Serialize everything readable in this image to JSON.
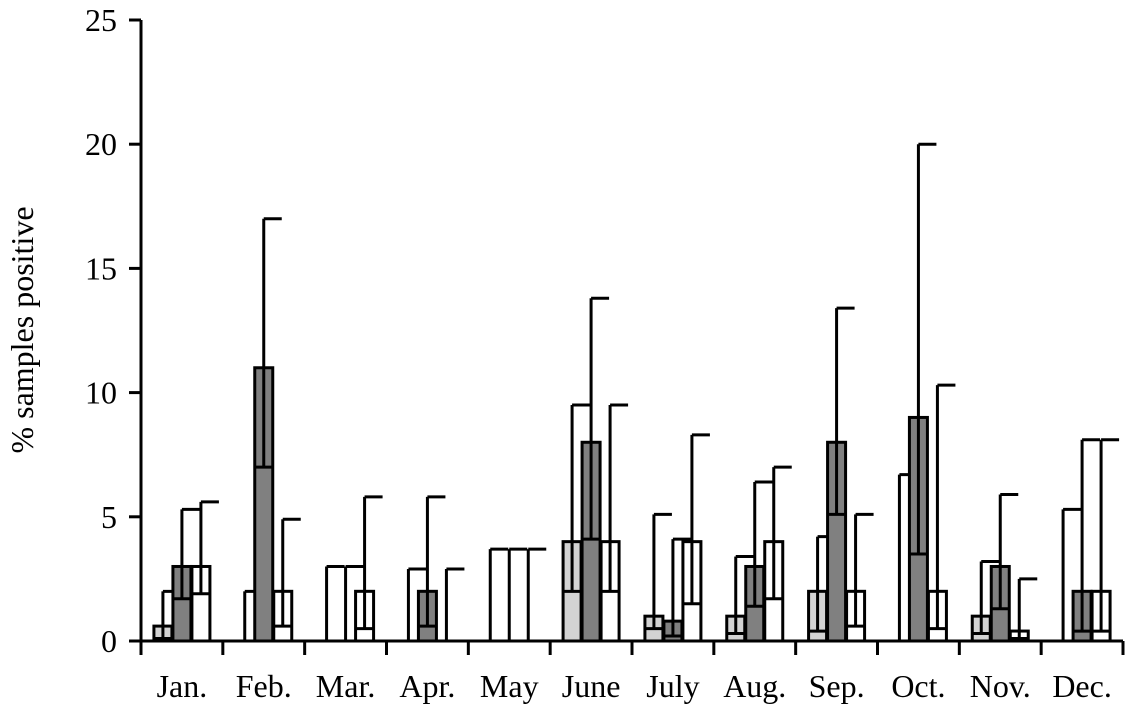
{
  "chart_data": {
    "type": "bar",
    "title": "",
    "xlabel": "",
    "ylabel": "% samples positive",
    "ylim": [
      0,
      25
    ],
    "yticks": [
      0,
      5,
      10,
      15,
      20,
      25
    ],
    "categories": [
      "Jan.",
      "Feb.",
      "Mar.",
      "Apr.",
      "May",
      "June",
      "July",
      "Aug.",
      "Sep.",
      "Oct.",
      "Nov.",
      "Dec."
    ],
    "series": [
      {
        "color": "#d3d3d3",
        "values": [
          0.6,
          0,
          0,
          0,
          0,
          4.0,
          1.0,
          1.0,
          2.0,
          0,
          1.0,
          0
        ],
        "error_low": [
          0.1,
          0,
          0,
          0,
          0,
          2.0,
          0.5,
          0.3,
          0.4,
          0,
          0.3,
          0
        ],
        "error_high": [
          2.0,
          2.0,
          3.0,
          2.9,
          3.7,
          9.5,
          5.1,
          3.4,
          4.2,
          6.7,
          3.2,
          5.3
        ]
      },
      {
        "color": "#808080",
        "values": [
          3.0,
          11.0,
          0,
          2.0,
          0,
          8.0,
          0.8,
          3.0,
          8.0,
          9.0,
          3.0,
          2.0
        ],
        "error_low": [
          1.7,
          7.0,
          0,
          0.6,
          0,
          4.1,
          0.2,
          1.4,
          5.1,
          3.5,
          1.3,
          0.4
        ],
        "error_high": [
          5.3,
          17.0,
          3.0,
          5.8,
          3.7,
          13.8,
          4.1,
          6.4,
          13.4,
          20.0,
          5.9,
          8.1
        ]
      },
      {
        "color": "#ffffff",
        "values": [
          3.0,
          2.0,
          2.0,
          0,
          0,
          4.0,
          4.0,
          4.0,
          2.0,
          2.0,
          0.4,
          2.0
        ],
        "error_low": [
          1.9,
          0.6,
          0.5,
          0,
          0,
          2.0,
          1.5,
          1.7,
          0.6,
          0.5,
          0.1,
          0.4
        ],
        "error_high": [
          5.6,
          4.9,
          5.8,
          2.9,
          3.7,
          9.5,
          8.3,
          7.0,
          5.1,
          10.3,
          2.5,
          8.1
        ]
      }
    ],
    "grid": false,
    "legend": "none"
  }
}
